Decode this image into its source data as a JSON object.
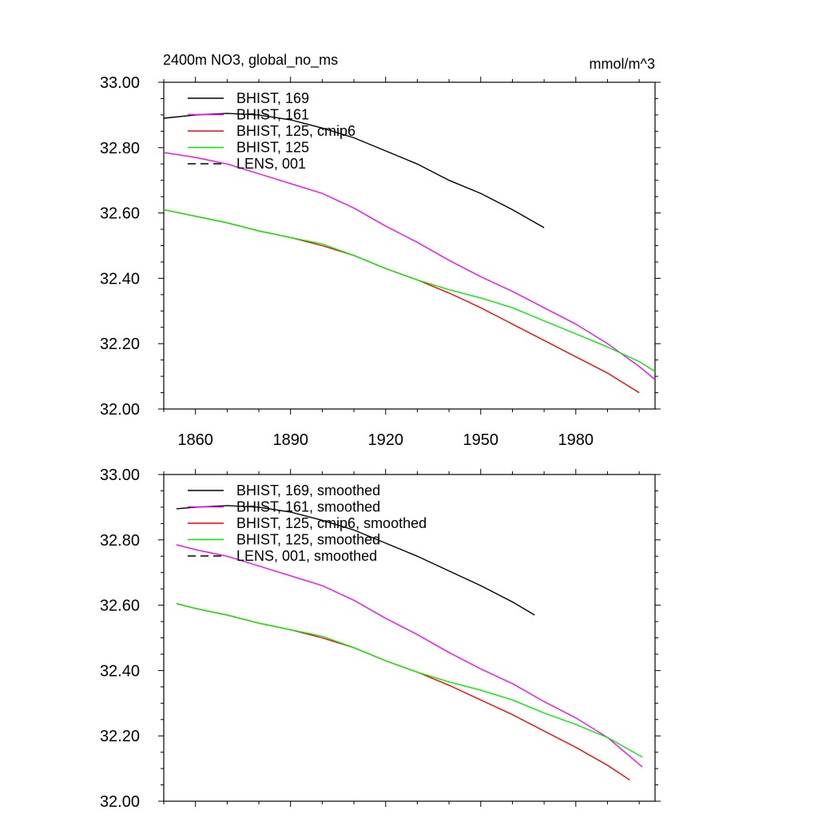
{
  "header": {
    "title": "2400m NO3, global_no_ms",
    "units": "mmol/m^3"
  },
  "chart_data": [
    {
      "type": "line",
      "title": "2400m NO3, global_no_ms",
      "units": "mmol/m^3",
      "xlim": [
        1850,
        2005
      ],
      "ylim": [
        32.0,
        33.0
      ],
      "x_ticks": [
        1860,
        1890,
        1920,
        1950,
        1980
      ],
      "y_ticks": [
        "32.00",
        "32.20",
        "32.40",
        "32.60",
        "32.80",
        "33.00"
      ],
      "x_tick_labels_shown": true,
      "grid": false,
      "legend": "top-left",
      "series": [
        {
          "name": "BHIST, 169",
          "color": "#000000",
          "dash": "solid",
          "x": [
            1850,
            1860,
            1870,
            1880,
            1890,
            1900,
            1910,
            1920,
            1930,
            1940,
            1950,
            1960,
            1970
          ],
          "y": [
            32.89,
            32.9,
            32.905,
            32.9,
            32.885,
            32.86,
            32.83,
            32.79,
            32.75,
            32.7,
            32.66,
            32.61,
            32.555
          ]
        },
        {
          "name": "BHIST, 161",
          "color": "#ff00ff",
          "dash": "solid",
          "x": [
            1850,
            1860,
            1870,
            1880,
            1890,
            1900,
            1910,
            1920,
            1930,
            1940,
            1950,
            1960,
            1970,
            1980,
            1990,
            2000,
            2005
          ],
          "y": [
            32.785,
            32.77,
            32.75,
            32.72,
            32.69,
            32.66,
            32.615,
            32.56,
            32.51,
            32.455,
            32.405,
            32.36,
            32.31,
            32.26,
            32.2,
            32.13,
            32.09
          ]
        },
        {
          "name": "BHIST, 125, cmip6",
          "color": "#ff0000",
          "dash": "solid",
          "x": [
            1850,
            1860,
            1870,
            1880,
            1890,
            1900,
            1910,
            1920,
            1930,
            1940,
            1950,
            1960,
            1970,
            1980,
            1990,
            2000
          ],
          "y": [
            32.61,
            32.59,
            32.57,
            32.545,
            32.525,
            32.5,
            32.47,
            32.43,
            32.395,
            32.355,
            32.31,
            32.26,
            32.21,
            32.16,
            32.11,
            32.05
          ]
        },
        {
          "name": "BHIST, 125",
          "color": "#00ee00",
          "dash": "solid",
          "x": [
            1850,
            1860,
            1870,
            1880,
            1890,
            1900,
            1910,
            1920,
            1930,
            1940,
            1950,
            1960,
            1970,
            1980,
            1990,
            2000,
            2005
          ],
          "y": [
            32.61,
            32.59,
            32.57,
            32.545,
            32.525,
            32.505,
            32.47,
            32.43,
            32.395,
            32.365,
            32.34,
            32.31,
            32.27,
            32.23,
            32.19,
            32.145,
            32.115
          ]
        },
        {
          "name": "LENS, 001",
          "color": "#000000",
          "dash": "dashed",
          "x": [],
          "y": []
        }
      ]
    },
    {
      "type": "line",
      "xlim": [
        1850,
        2005
      ],
      "ylim": [
        32.0,
        33.0
      ],
      "y_ticks": [
        "32.00",
        "32.20",
        "32.40",
        "32.60",
        "32.80",
        "33.00"
      ],
      "x_tick_labels_shown": false,
      "grid": false,
      "legend": "top-left",
      "series": [
        {
          "name": "BHIST, 169, smoothed",
          "color": "#000000",
          "dash": "solid",
          "x": [
            1854,
            1860,
            1870,
            1880,
            1890,
            1900,
            1910,
            1920,
            1930,
            1940,
            1950,
            1960,
            1967
          ],
          "y": [
            32.895,
            32.9,
            32.905,
            32.9,
            32.885,
            32.86,
            32.83,
            32.79,
            32.75,
            32.705,
            32.66,
            32.61,
            32.57
          ]
        },
        {
          "name": "BHIST, 161, smoothed",
          "color": "#ff00ff",
          "dash": "solid",
          "x": [
            1854,
            1860,
            1870,
            1880,
            1890,
            1900,
            1910,
            1920,
            1930,
            1940,
            1950,
            1960,
            1970,
            1980,
            1990,
            2001
          ],
          "y": [
            32.785,
            32.77,
            32.75,
            32.72,
            32.69,
            32.66,
            32.615,
            32.56,
            32.51,
            32.455,
            32.405,
            32.36,
            32.305,
            32.255,
            32.195,
            32.105
          ]
        },
        {
          "name": "BHIST, 125, cmip6, smoothed",
          "color": "#ff0000",
          "dash": "solid",
          "x": [
            1854,
            1860,
            1870,
            1880,
            1890,
            1900,
            1910,
            1920,
            1930,
            1940,
            1950,
            1960,
            1970,
            1980,
            1990,
            1997
          ],
          "y": [
            32.605,
            32.59,
            32.57,
            32.545,
            32.525,
            32.5,
            32.47,
            32.43,
            32.395,
            32.355,
            32.31,
            32.265,
            32.215,
            32.165,
            32.11,
            32.065
          ]
        },
        {
          "name": "BHIST, 125, smoothed",
          "color": "#00ee00",
          "dash": "solid",
          "x": [
            1854,
            1860,
            1870,
            1880,
            1890,
            1900,
            1910,
            1920,
            1930,
            1940,
            1950,
            1960,
            1970,
            1980,
            1990,
            2001
          ],
          "y": [
            32.605,
            32.59,
            32.57,
            32.545,
            32.525,
            32.505,
            32.47,
            32.43,
            32.395,
            32.365,
            32.34,
            32.31,
            32.27,
            32.235,
            32.195,
            32.135
          ]
        },
        {
          "name": "LENS, 001, smoothed",
          "color": "#000000",
          "dash": "dashed",
          "x": [],
          "y": []
        }
      ]
    }
  ]
}
